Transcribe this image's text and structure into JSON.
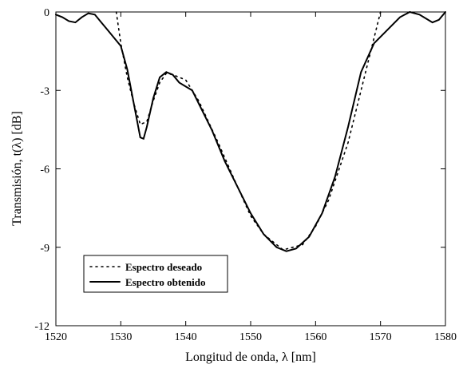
{
  "chart_data": {
    "type": "line",
    "x_label": "Longitud de onda, λ [nm]",
    "y_label": "Transmisión, t(λ) [dB]",
    "xlim": [
      1520,
      1580
    ],
    "ylim": [
      -12,
      0
    ],
    "xticks": [
      1520,
      1530,
      1540,
      1550,
      1560,
      1570,
      1580
    ],
    "yticks": [
      0,
      -3,
      -6,
      -9,
      -12
    ],
    "legend": "lower left",
    "series": [
      {
        "name": "Espectro deseado",
        "color": "#000000",
        "style": "dotted",
        "x": [
          1529.3,
          1530,
          1531,
          1532,
          1533,
          1534,
          1535,
          1536,
          1537,
          1538,
          1540,
          1542,
          1545,
          1548,
          1550,
          1552,
          1555,
          1558,
          1560,
          1562,
          1565,
          1567,
          1568,
          1569,
          1570
        ],
        "values": [
          0,
          -1.2,
          -2.5,
          -3.5,
          -4.3,
          -4.2,
          -3.4,
          -2.7,
          -2.35,
          -2.4,
          -2.6,
          -3.4,
          -5.0,
          -6.7,
          -7.8,
          -8.5,
          -9.1,
          -8.9,
          -8.2,
          -7.2,
          -5.0,
          -3.0,
          -2.0,
          -1.0,
          0
        ]
      },
      {
        "name": "Espectro obtenido",
        "color": "#000000",
        "style": "solid",
        "x": [
          1520,
          1521,
          1522,
          1523,
          1524,
          1525,
          1526,
          1527,
          1528,
          1529,
          1530,
          1531,
          1532,
          1533,
          1533.5,
          1534,
          1535,
          1536,
          1537,
          1538,
          1539,
          1540,
          1541,
          1542,
          1544,
          1546,
          1548,
          1550,
          1552,
          1554,
          1555.5,
          1557,
          1559,
          1561,
          1563,
          1565,
          1567,
          1569,
          1571,
          1573,
          1574.5,
          1576,
          1578,
          1579,
          1580
        ],
        "values": [
          -0.1,
          -0.2,
          -0.35,
          -0.4,
          -0.2,
          -0.05,
          -0.1,
          -0.4,
          -0.7,
          -1.0,
          -1.3,
          -2.2,
          -3.5,
          -4.8,
          -4.85,
          -4.4,
          -3.3,
          -2.5,
          -2.3,
          -2.4,
          -2.7,
          -2.85,
          -3.0,
          -3.5,
          -4.5,
          -5.7,
          -6.7,
          -7.7,
          -8.5,
          -9.0,
          -9.15,
          -9.05,
          -8.6,
          -7.7,
          -6.3,
          -4.4,
          -2.3,
          -1.2,
          -0.7,
          -0.2,
          0,
          -0.1,
          -0.4,
          -0.3,
          0
        ]
      }
    ]
  }
}
